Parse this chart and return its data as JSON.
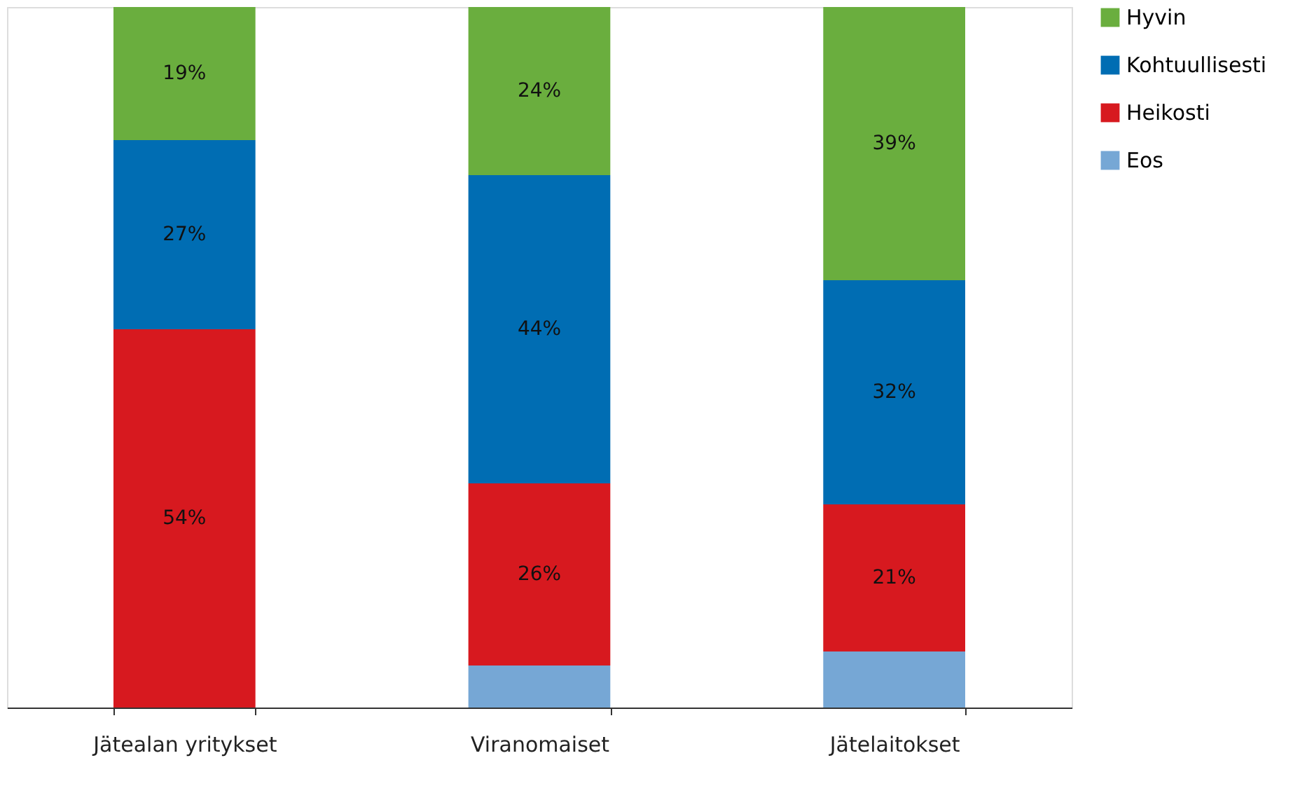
{
  "chart_data": {
    "type": "bar",
    "stacked": true,
    "categories": [
      "Jätealan yritykset",
      "Viranomaiset",
      "Jätelaitokset"
    ],
    "ylim": [
      0,
      100
    ],
    "tick_labels": "x",
    "grid": false,
    "legend": "right",
    "series": [
      {
        "name": "Eos",
        "color": "#76a7d5",
        "values": [
          null,
          6,
          8
        ],
        "value_labels": [
          null,
          null,
          null
        ]
      },
      {
        "name": "Heikosti",
        "color": "#d7191f",
        "values": [
          54,
          26,
          21
        ],
        "value_labels": [
          "54%",
          "26%",
          "21%"
        ]
      },
      {
        "name": "Kohtuullisesti",
        "color": "#006db3",
        "values": [
          27,
          44,
          32
        ],
        "value_labels": [
          "27%",
          "44%",
          "32%"
        ]
      },
      {
        "name": "Hyvin",
        "color": "#6aae3e",
        "values": [
          19,
          24,
          39
        ],
        "value_labels": [
          "19%",
          "24%",
          "39%"
        ]
      }
    ]
  }
}
